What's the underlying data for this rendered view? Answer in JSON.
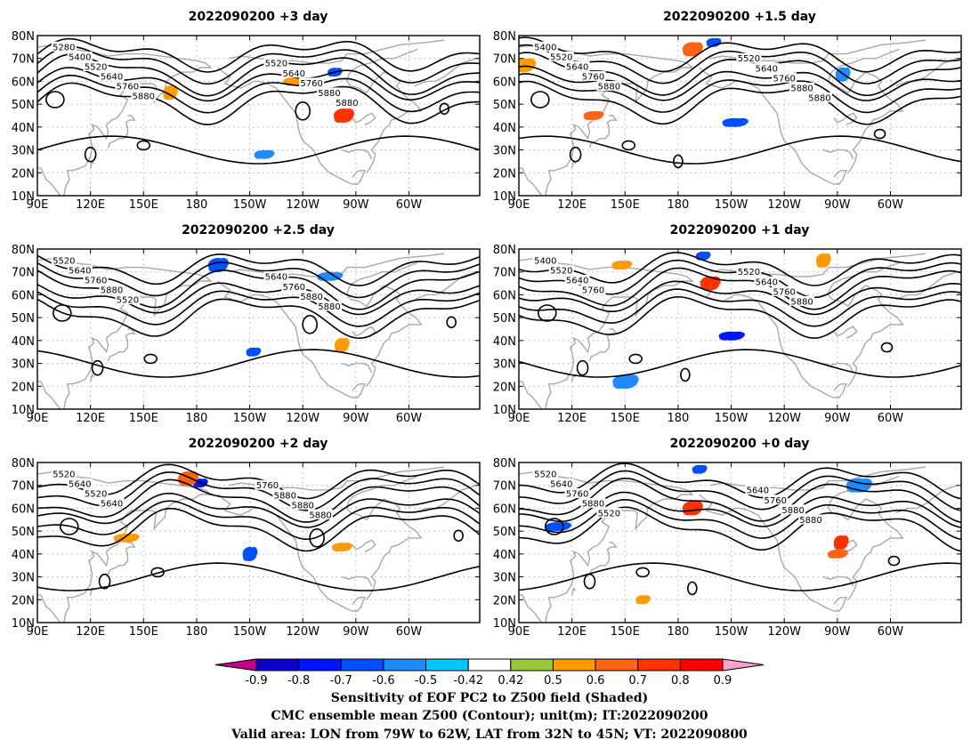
{
  "panels": [
    {
      "title": "2022090200 +3 day",
      "contour_labels": [
        "5280",
        "5400",
        "5520",
        "5640",
        "5760",
        "5880",
        "5520",
        "5640",
        "5760",
        "5880",
        "5880"
      ],
      "sensitivity_patches": [
        {
          "lon": 258,
          "lat": 64,
          "value": -0.6
        },
        {
          "lon": 263,
          "lat": 45,
          "value": 0.7
        },
        {
          "lon": 236,
          "lat": 60,
          "value": 0.5
        },
        {
          "lon": 165,
          "lat": 55,
          "value": 0.5
        },
        {
          "lon": 218,
          "lat": 28,
          "value": -0.5
        }
      ]
    },
    {
      "title": "2022090200 +1.5 day",
      "contour_labels": [
        "5400",
        "5520",
        "5640",
        "5760",
        "5880",
        "5520",
        "5640",
        "5760",
        "5880",
        "5880"
      ],
      "sensitivity_patches": [
        {
          "lon": 200,
          "lat": 77,
          "value": -0.6
        },
        {
          "lon": 188,
          "lat": 74,
          "value": 0.6
        },
        {
          "lon": 212,
          "lat": 42,
          "value": -0.6
        },
        {
          "lon": 273,
          "lat": 63,
          "value": -0.5
        },
        {
          "lon": 132,
          "lat": 45,
          "value": 0.6
        },
        {
          "lon": 92,
          "lat": 67,
          "value": 0.5
        }
      ]
    },
    {
      "title": "2022090200 +2.5 day",
      "contour_labels": [
        "5520",
        "5640",
        "5760",
        "5880",
        "5520",
        "5640",
        "5760",
        "5880",
        "5880"
      ],
      "sensitivity_patches": [
        {
          "lon": 212,
          "lat": 35,
          "value": -0.6
        },
        {
          "lon": 192,
          "lat": 73,
          "value": -0.6
        },
        {
          "lon": 255,
          "lat": 68,
          "value": -0.5
        },
        {
          "lon": 262,
          "lat": 38,
          "value": 0.5
        }
      ]
    },
    {
      "title": "2022090200 +1 day",
      "contour_labels": [
        "5400",
        "5520",
        "5640",
        "5760",
        "5520",
        "5640",
        "5760",
        "5880"
      ],
      "sensitivity_patches": [
        {
          "lon": 194,
          "lat": 77,
          "value": -0.6
        },
        {
          "lon": 198,
          "lat": 65,
          "value": 0.7
        },
        {
          "lon": 210,
          "lat": 42,
          "value": -0.7
        },
        {
          "lon": 262,
          "lat": 75,
          "value": 0.5
        },
        {
          "lon": 148,
          "lat": 73,
          "value": 0.5
        },
        {
          "lon": 150,
          "lat": 22,
          "value": -0.5
        }
      ]
    },
    {
      "title": "2022090200 +2 day",
      "contour_labels": [
        "5520",
        "5640",
        "5520",
        "5640",
        "5760",
        "5880",
        "5880",
        "5880"
      ],
      "sensitivity_patches": [
        {
          "lon": 182,
          "lat": 71,
          "value": -0.7
        },
        {
          "lon": 175,
          "lat": 73,
          "value": 0.6
        },
        {
          "lon": 140,
          "lat": 47,
          "value": 0.5
        },
        {
          "lon": 210,
          "lat": 40,
          "value": -0.6
        },
        {
          "lon": 262,
          "lat": 43,
          "value": 0.5
        }
      ]
    },
    {
      "title": "2022090200 +0 day",
      "contour_labels": [
        "5520",
        "5640",
        "5760",
        "5880",
        "5520",
        "5640",
        "5760",
        "5880",
        "5880"
      ],
      "sensitivity_patches": [
        {
          "lon": 192,
          "lat": 77,
          "value": -0.6
        },
        {
          "lon": 188,
          "lat": 60,
          "value": 0.7
        },
        {
          "lon": 112,
          "lat": 52,
          "value": -0.6
        },
        {
          "lon": 272,
          "lat": 45,
          "value": 0.7
        },
        {
          "lon": 270,
          "lat": 40,
          "value": 0.6
        },
        {
          "lon": 282,
          "lat": 70,
          "value": -0.5
        },
        {
          "lon": 160,
          "lat": 20,
          "value": 0.5
        }
      ]
    }
  ],
  "axes": {
    "lon_ticks": [
      {
        "lon": 90,
        "label": "90E"
      },
      {
        "lon": 120,
        "label": "120E"
      },
      {
        "lon": 150,
        "label": "150E"
      },
      {
        "lon": 180,
        "label": "180"
      },
      {
        "lon": 210,
        "label": "150W"
      },
      {
        "lon": 240,
        "label": "120W"
      },
      {
        "lon": 270,
        "label": "90W"
      },
      {
        "lon": 300,
        "label": "60W"
      }
    ],
    "lat_ticks": [
      {
        "lat": 10,
        "label": "10N"
      },
      {
        "lat": 20,
        "label": "20N"
      },
      {
        "lat": 30,
        "label": "30N"
      },
      {
        "lat": 40,
        "label": "40N"
      },
      {
        "lat": 50,
        "label": "50N"
      },
      {
        "lat": 60,
        "label": "60N"
      },
      {
        "lat": 70,
        "label": "70N"
      },
      {
        "lat": 80,
        "label": "80N"
      }
    ],
    "lon_range": [
      90,
      340
    ],
    "lat_range": [
      10,
      80
    ]
  },
  "colorbar": {
    "colors": [
      "#c0008c",
      "#0a00c8",
      "#0014ff",
      "#0050ff",
      "#1e8cff",
      "#00c8ff",
      "#ffffff",
      "#96c83c",
      "#ff9b00",
      "#ff6414",
      "#ff3200",
      "#ff0000",
      "#ffa0c8"
    ],
    "labels": [
      "-0.9",
      "-0.8",
      "-0.7",
      "-0.6",
      "-0.5",
      "-0.42",
      "0.42",
      "0.5",
      "0.6",
      "0.7",
      "0.8",
      "0.9"
    ]
  },
  "caption": {
    "line1": "Sensitivity of EOF PC2 to Z500 field (Shaded)",
    "line2": "CMC ensemble mean Z500 (Contour); unit(m); IT:2022090200",
    "line3": "Valid area: LON from 79W to 62W, LAT from 32N to 45N; VT: 2022090800"
  }
}
